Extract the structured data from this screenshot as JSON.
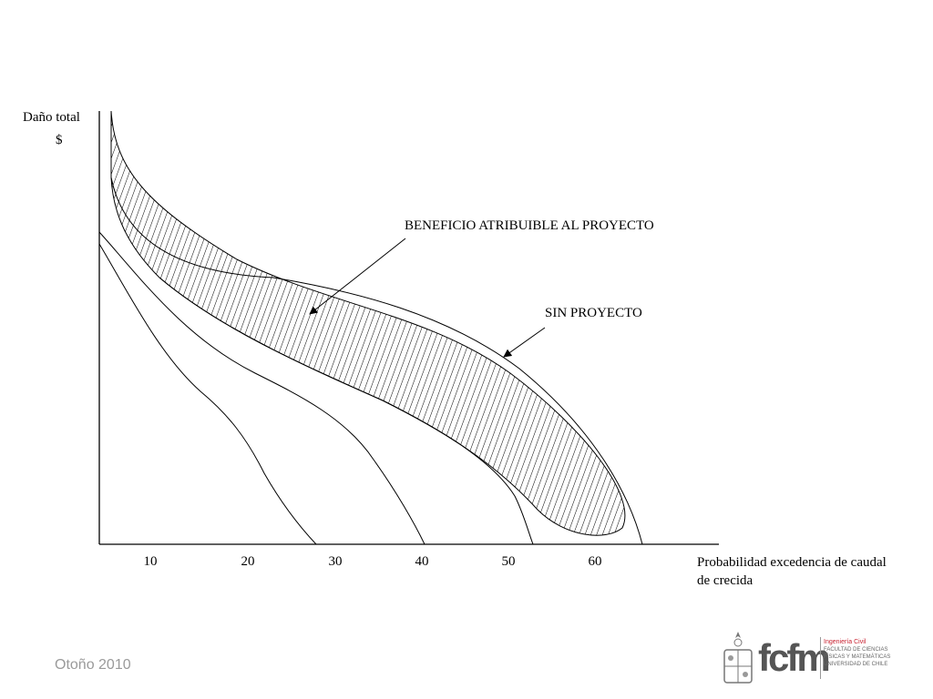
{
  "diagram": {
    "y_axis_label": "Daño total",
    "y_axis_unit": "$",
    "x_axis_label": "Probabilidad excedencia de caudal",
    "x_axis_label_line2": "de crecida",
    "x_ticks": [
      "10",
      "20",
      "30",
      "40",
      "50",
      "60"
    ],
    "annotation_benefit": "BENEFICIO ATRIBUIBLE AL PROYECTO",
    "annotation_without_project": "SIN PROYECTO"
  },
  "footer": {
    "season": "Otoño 2010"
  },
  "logo": {
    "wordmark": "fcfm",
    "line1": "Ingeniería Civil",
    "line2": "FACULTAD DE CIENCIAS",
    "line3": "FÍSICAS Y MATEMÁTICAS",
    "line4": "UNIVERSIDAD DE CHILE",
    "accent_color": "#c8202f",
    "text_color": "#555555"
  }
}
